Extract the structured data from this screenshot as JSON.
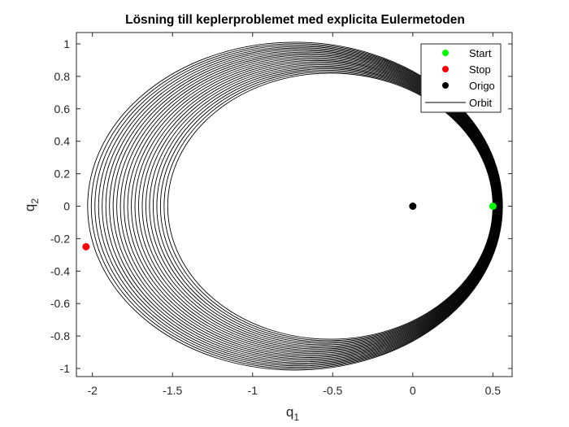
{
  "chart_data": {
    "type": "line",
    "title": "Lösning till keplerproblemet med explicita Eulermetoden",
    "xlabel": {
      "base": "q",
      "sub": "1"
    },
    "ylabel": {
      "base": "q",
      "sub": "2"
    },
    "xlim": [
      -2.1,
      0.62
    ],
    "ylim": [
      -1.05,
      1.07
    ],
    "xticks": [
      -2,
      -1.5,
      -1,
      -0.5,
      0,
      0.5
    ],
    "xtick_labels": [
      "-2",
      "-1.5",
      "-1",
      "-0.5",
      "0",
      "0.5"
    ],
    "yticks": [
      -1,
      -0.8,
      -0.6,
      -0.4,
      -0.2,
      0,
      0.2,
      0.4,
      0.6,
      0.8,
      1
    ],
    "ytick_labels": [
      "-1",
      "-0.8",
      "-0.6",
      "-0.4",
      "-0.2",
      "0",
      "0.2",
      "0.4",
      "0.6",
      "0.8",
      "1"
    ],
    "grid": false,
    "legend_position": "top-right",
    "series": [
      {
        "name": "Start",
        "kind": "marker",
        "color": "#00ff00",
        "points": [
          [
            0.5,
            0.0
          ]
        ]
      },
      {
        "name": "Stop",
        "kind": "marker",
        "color": "#ff0000",
        "points": [
          [
            -2.04,
            -0.25
          ]
        ]
      },
      {
        "name": "Origo",
        "kind": "marker",
        "color": "#000000",
        "points": [
          [
            0.0,
            0.0
          ]
        ]
      },
      {
        "name": "Orbit",
        "kind": "line",
        "color": "#000000",
        "orbits": {
          "count": 23,
          "perihelion_start": 0.5,
          "perihelion_end": 0.56,
          "aphelion_start": -1.53,
          "aphelion_end": -2.03,
          "semi_minor_start": 0.82,
          "semi_minor_end": 1.01
        }
      }
    ]
  }
}
